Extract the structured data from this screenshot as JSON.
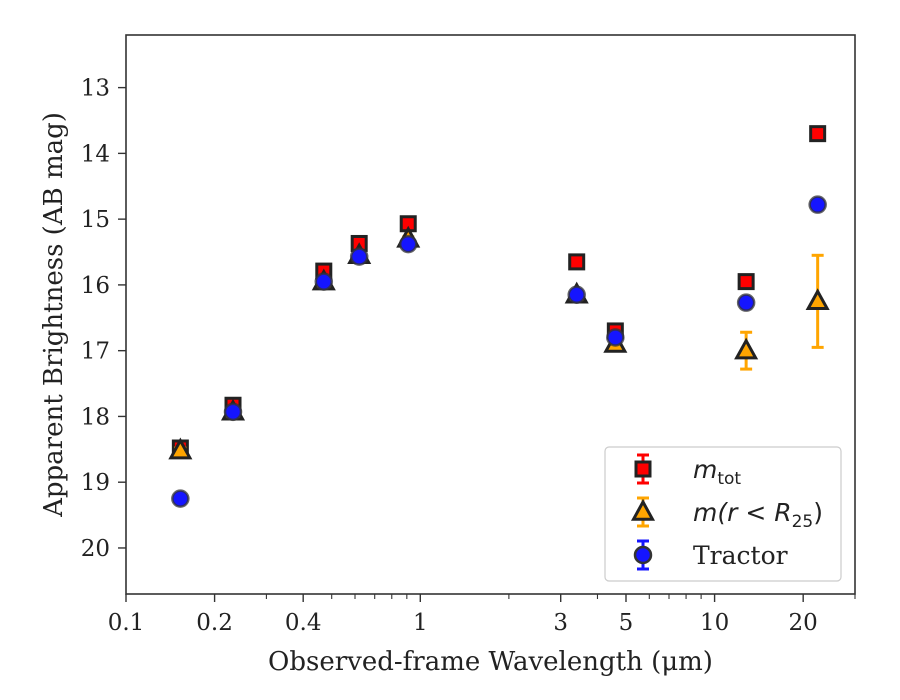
{
  "chart_data": {
    "type": "scatter",
    "xlabel": "Observed-frame Wavelength (μm)",
    "ylabel": "Apparent Brightness (AB mag)",
    "x_scale": "log",
    "y_inverted": true,
    "xlim": [
      0.1,
      30
    ],
    "ylim": [
      20.7,
      12.2
    ],
    "x_ticks": [
      0.1,
      0.2,
      0.4,
      1,
      3,
      5,
      10,
      20
    ],
    "x_tick_labels": [
      "0.1",
      "0.2",
      "0.4",
      "1",
      "3",
      "5",
      "10",
      "20"
    ],
    "y_ticks": [
      13,
      14,
      15,
      16,
      17,
      18,
      19,
      20
    ],
    "y_tick_labels": [
      "13",
      "14",
      "15",
      "16",
      "17",
      "18",
      "19",
      "20"
    ],
    "legend_position": "lower-right",
    "series": [
      {
        "name": "m_tot",
        "label_main": "m",
        "label_sub": "tot",
        "marker": "square",
        "color": "#ff0000",
        "edge_color": "#222222",
        "error_color": "#ff0000",
        "x": [
          0.153,
          0.231,
          0.47,
          0.62,
          0.91,
          3.4,
          4.6,
          12.8,
          22.4
        ],
        "y": [
          18.48,
          17.83,
          15.79,
          15.37,
          15.07,
          15.65,
          16.7,
          15.95,
          13.7
        ],
        "yerr": [
          0.03,
          0.03,
          0.02,
          0.02,
          0.02,
          0.02,
          0.03,
          0.04,
          0.03
        ]
      },
      {
        "name": "m(r < R25)",
        "label_main": "m(r < R",
        "label_sub": "25",
        "label_end": ")",
        "marker": "triangle",
        "color": "#ffa500",
        "edge_color": "#222222",
        "error_color": "#ffa500",
        "x": [
          0.153,
          0.231,
          0.47,
          0.62,
          0.91,
          3.4,
          4.6,
          12.8,
          22.4
        ],
        "y": [
          18.52,
          17.93,
          15.95,
          15.55,
          15.3,
          16.15,
          16.9,
          17.0,
          16.25
        ],
        "yerr": [
          0.04,
          0.04,
          0.03,
          0.03,
          0.03,
          0.03,
          0.04,
          0.28,
          0.7
        ]
      },
      {
        "name": "Tractor",
        "label_main": "Tractor",
        "marker": "circle",
        "color": "#1515ff",
        "edge_color": "#333333",
        "error_color": "#1515ff",
        "x": [
          0.153,
          0.231,
          0.47,
          0.62,
          0.91,
          3.4,
          4.6,
          12.8,
          22.4
        ],
        "y": [
          19.25,
          17.93,
          15.95,
          15.57,
          15.38,
          16.15,
          16.8,
          16.27,
          14.78
        ],
        "yerr": [
          0.05,
          0.03,
          0.02,
          0.02,
          0.02,
          0.03,
          0.03,
          0.04,
          0.06
        ]
      }
    ]
  }
}
